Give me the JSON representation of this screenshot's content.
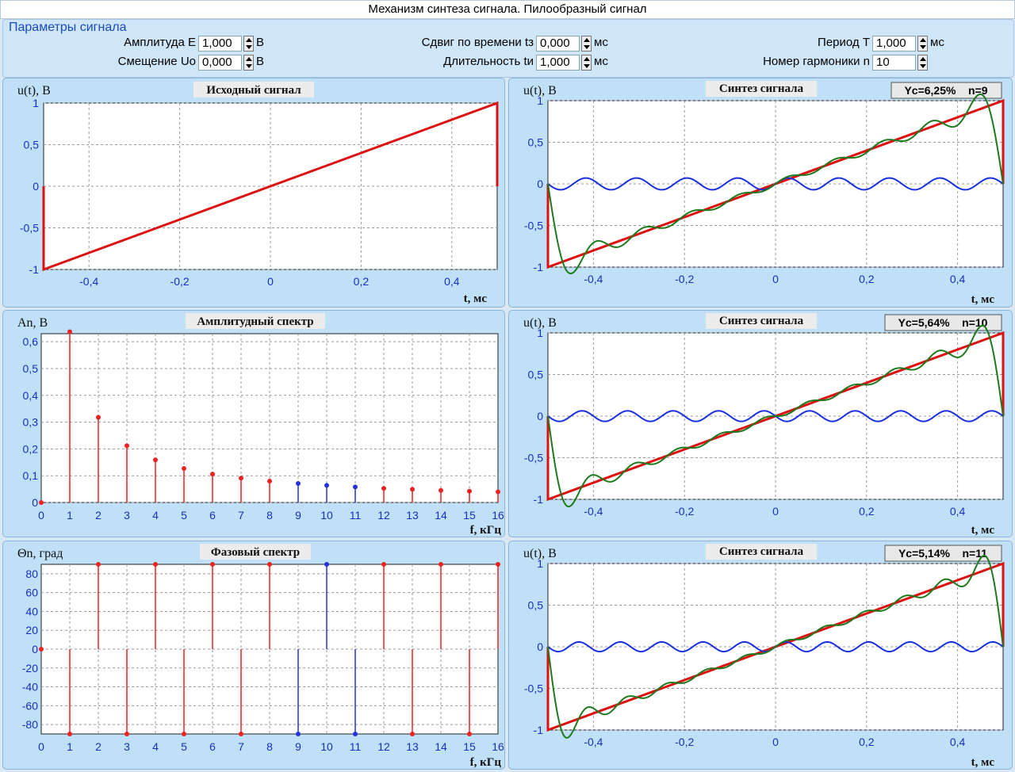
{
  "window_title": "Механизм синтеза сигнала. Пилообразный сигнал",
  "params": {
    "group_title": "Параметры сигнала",
    "amplitude_label": "Амплитуда  E",
    "amplitude_value": "1,000",
    "amplitude_unit": "В",
    "offset_label": "Смещение  Uo",
    "offset_value": "0,000",
    "offset_unit": "В",
    "shift_label": "Сдвиг по времени  tз",
    "shift_value": "0,000",
    "shift_unit": "мс",
    "duration_label": "Длительность  tи",
    "duration_value": "1,000",
    "duration_unit": "мс",
    "period_label": "Период  T",
    "period_value": "1,000",
    "period_unit": "мс",
    "harmonic_label": "Номер гармоники  n",
    "harmonic_value": "10"
  },
  "colors": {
    "signal": "#dd1111",
    "synthesis": "#1e7a1e",
    "error": "#1a2fdd",
    "spectrum_red": "#ee2222",
    "spectrum_blue": "#2233dd",
    "tick": "#1a2fbf"
  },
  "panels": {
    "source": {
      "title": "Исходный сигнал",
      "ylabel": "u(t), В",
      "xlabel": "t, мс"
    },
    "amp": {
      "title": "Амплитудный спектр",
      "ylabel": "An, В",
      "xlabel": "f, кГц"
    },
    "phase": {
      "title": "Фазовый спектр",
      "ylabel": "Θn, град",
      "xlabel": "f, кГц"
    },
    "syn1": {
      "title": "Синтез сигнала",
      "ylabel": "u(t), В",
      "xlabel": "t, мс",
      "badge": "Yc=6,25%    n=9"
    },
    "syn2": {
      "title": "Синтез сигнала",
      "ylabel": "u(t), В",
      "xlabel": "t, мс",
      "badge": "Yc=5,64%    n=10"
    },
    "syn3": {
      "title": "Синтез сигнала",
      "ylabel": "u(t), В",
      "xlabel": "t, мс",
      "badge": "Yc=5,14%    n=11"
    }
  },
  "chart_data": [
    {
      "type": "line",
      "title": "Исходный сигнал",
      "ylabel": "u(t), В",
      "xlabel": "t, мс",
      "xlim": [
        -0.5,
        0.5
      ],
      "ylim": [
        -1,
        1
      ],
      "xticks": [
        "-0,4",
        "-0,2",
        "0",
        "0,2",
        "0,4"
      ],
      "yticks": [
        "1",
        "0,5",
        "0",
        "-0,5",
        "-1"
      ],
      "series": [
        {
          "x": [
            -0.5,
            -0.5,
            0.5,
            0.5
          ],
          "y": [
            0,
            -1,
            1,
            0
          ]
        }
      ],
      "grid": true
    },
    {
      "type": "bar",
      "title": "Амплитудный спектр",
      "ylabel": "An, В",
      "xlabel": "f, кГц",
      "categories": [
        "0",
        "1",
        "2",
        "3",
        "4",
        "5",
        "6",
        "7",
        "8",
        "9",
        "10",
        "11",
        "12",
        "13",
        "14",
        "15",
        "16"
      ],
      "yticks": [
        "0,6",
        "0,5",
        "0,4",
        "0,3",
        "0,2",
        "0,1",
        "0"
      ],
      "ylim": [
        0,
        0.63
      ],
      "values": [
        0,
        0.637,
        0.318,
        0.212,
        0.159,
        0.127,
        0.106,
        0.091,
        0.08,
        0.071,
        0.064,
        0.058,
        0.053,
        0.049,
        0.045,
        0.042,
        0.04
      ],
      "highlighted": [
        9,
        10,
        11
      ],
      "grid": true
    },
    {
      "type": "bar",
      "title": "Фазовый спектр",
      "ylabel": "Θn, град",
      "xlabel": "f, кГц",
      "categories": [
        "0",
        "1",
        "2",
        "3",
        "4",
        "5",
        "6",
        "7",
        "8",
        "9",
        "10",
        "11",
        "12",
        "13",
        "14",
        "15",
        "16"
      ],
      "yticks": [
        "80",
        "60",
        "40",
        "20",
        "0",
        "-20",
        "-40",
        "-60",
        "-80"
      ],
      "ylim": [
        -90,
        90
      ],
      "values": [
        0,
        -90,
        90,
        -90,
        90,
        -90,
        90,
        -90,
        90,
        -90,
        90,
        -90,
        90,
        -90,
        90,
        -90,
        90
      ],
      "highlighted": [
        9,
        10,
        11
      ],
      "grid": true
    },
    {
      "type": "line",
      "title": "Синтез сигнала",
      "xlim": [
        -0.5,
        0.5
      ],
      "ylim": [
        -1,
        1
      ],
      "harmonics": 9,
      "xticks": [
        "-0,4",
        "-0,2",
        "0",
        "0,2",
        "0,4"
      ],
      "yticks": [
        "1",
        "0,5",
        "0",
        "-0,5",
        "-1"
      ],
      "series": [
        {
          "type": "sawtooth",
          "range": [
            -1,
            1
          ]
        },
        {
          "type": "fourier_sum",
          "n": 9
        },
        {
          "type": "harmonic",
          "n": 9,
          "amplitude": 0.071
        }
      ]
    },
    {
      "type": "line",
      "title": "Синтез сигнала",
      "xlim": [
        -0.5,
        0.5
      ],
      "ylim": [
        -1,
        1
      ],
      "harmonics": 10,
      "xticks": [
        "-0,4",
        "-0,2",
        "0",
        "0,2",
        "0,4"
      ],
      "yticks": [
        "1",
        "0,5",
        "0",
        "-0,5",
        "-1"
      ],
      "series": [
        {
          "type": "sawtooth",
          "range": [
            -1,
            1
          ]
        },
        {
          "type": "fourier_sum",
          "n": 10
        },
        {
          "type": "harmonic",
          "n": 10,
          "amplitude": 0.064
        }
      ]
    },
    {
      "type": "line",
      "title": "Синтез сигнала",
      "xlim": [
        -0.5,
        0.5
      ],
      "ylim": [
        -1,
        1
      ],
      "harmonics": 11,
      "xticks": [
        "-0,4",
        "-0,2",
        "0",
        "0,2",
        "0,4"
      ],
      "yticks": [
        "1",
        "0,5",
        "0",
        "-0,5",
        "-1"
      ],
      "series": [
        {
          "type": "sawtooth",
          "range": [
            -1,
            1
          ]
        },
        {
          "type": "fourier_sum",
          "n": 11
        },
        {
          "type": "harmonic",
          "n": 11,
          "amplitude": 0.058
        }
      ]
    }
  ]
}
